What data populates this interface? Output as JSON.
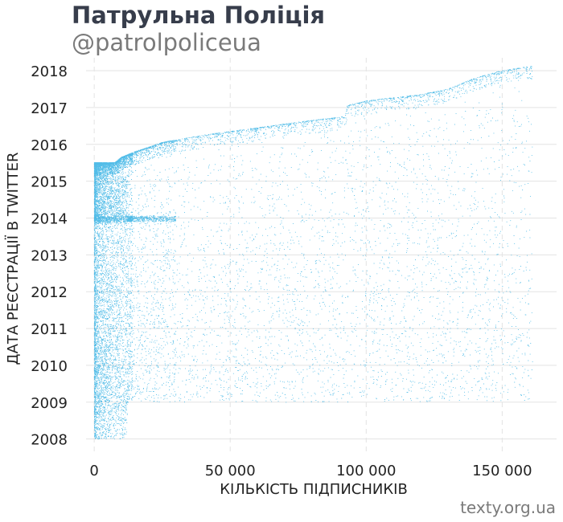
{
  "header": {
    "title": "Патрульна Поліція",
    "subtitle": "@patrolpoliceua",
    "credit": "texty.org.ua"
  },
  "colors": {
    "points": "#1aa7e0",
    "grid": "#e3e3e3",
    "title": "#373d4b",
    "subtitle": "#7a7a7a"
  },
  "chart_data": {
    "type": "scatter",
    "xlabel": "КІЛЬКІСТЬ ПІДПИСНИКІВ",
    "ylabel": "ДАТА РЕЄСТРАЦІЇ В TWITTER",
    "xlim": [
      -3000,
      170000
    ],
    "ylim": [
      2007.6,
      2018.35
    ],
    "x_ticks": [
      {
        "value": 0,
        "label": "0"
      },
      {
        "value": 50000,
        "label": "50 000"
      },
      {
        "value": 100000,
        "label": "100 000"
      },
      {
        "value": 150000,
        "label": "150 000"
      }
    ],
    "y_ticks": [
      {
        "value": 2008,
        "label": "2008"
      },
      {
        "value": 2009,
        "label": "2009"
      },
      {
        "value": 2010,
        "label": "2010"
      },
      {
        "value": 2011,
        "label": "2011"
      },
      {
        "value": 2012,
        "label": "2012"
      },
      {
        "value": 2013,
        "label": "2013"
      },
      {
        "value": 2014,
        "label": "2014"
      },
      {
        "value": 2015,
        "label": "2015"
      },
      {
        "value": 2016,
        "label": "2016"
      },
      {
        "value": 2017,
        "label": "2017"
      },
      {
        "value": 2018,
        "label": "2018"
      }
    ],
    "grid": true,
    "series": [
      {
        "name": "",
        "point_count": 16000,
        "follower_range": [
          0,
          161000
        ],
        "frontier": [
          [
            0,
            2015.5
          ],
          [
            7500,
            2015.5
          ],
          [
            10000,
            2015.65
          ],
          [
            15000,
            2015.8
          ],
          [
            25000,
            2016.05
          ],
          [
            40000,
            2016.25
          ],
          [
            60000,
            2016.45
          ],
          [
            80000,
            2016.65
          ],
          [
            92000,
            2016.75
          ],
          [
            93000,
            2017.05
          ],
          [
            100000,
            2017.18
          ],
          [
            120000,
            2017.35
          ],
          [
            130000,
            2017.5
          ],
          [
            140000,
            2017.8
          ],
          [
            150000,
            2018.0
          ],
          [
            161000,
            2018.12
          ]
        ]
      }
    ]
  }
}
